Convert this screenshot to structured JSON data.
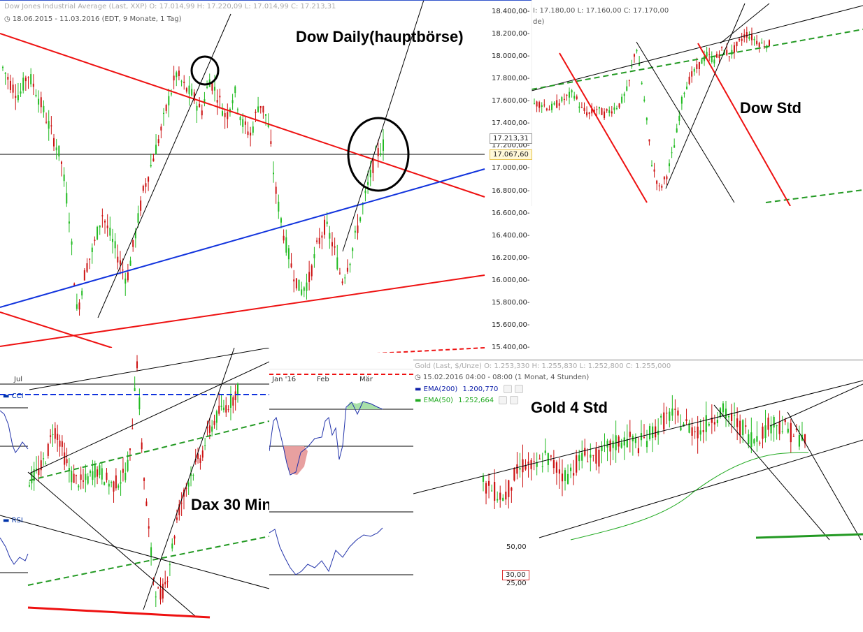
{
  "dow_daily": {
    "header": "Dow Jones Industrial Average (Last, XXP)  O: 17.014,99  H: 17.220,09  L: 17.014,99  C: 17.213,31",
    "period": "18.06.2015 - 11.03.2016 (EDT, 9 Monate, 1 Tag)",
    "title": "Dow Daily(hauptbörse)"
  },
  "dow_std": {
    "header": "I: 17.180,00  L: 17.160,00  C: 17.170,00",
    "header_suffix": "de)",
    "title": "Dow Std",
    "price_tag": "17.213,31",
    "current_tag": "17.067,60"
  },
  "dax": {
    "title": "Dax 30 Min",
    "x_label": "Jul",
    "cci_label": "CCI",
    "rsi_label": "RSI"
  },
  "middle": {
    "x_labels": [
      "Jan '16",
      "Feb",
      "Mär"
    ]
  },
  "gold": {
    "header": "Gold (Last, $/Unze)  O: 1.253,330  H: 1.255,830  L: 1.252,800  C: 1.255,000",
    "period": "15.02.2016 04:00 - 08:00 (1 Monat, 4 Stunden)",
    "ema200_label": "EMA(200)",
    "ema200_value": "1.200,770",
    "ema50_label": "EMA(50)",
    "ema50_value": "1.252,664",
    "title": "Gold 4 Std",
    "rsi_axis": [
      "50,00",
      "30,00",
      "25,00"
    ]
  },
  "colors": {
    "up": "#22bb22",
    "down": "#cc1111",
    "trend_red": "#ee1111",
    "trend_blue": "#1133dd",
    "trend_green": "#229922",
    "ema200": "#1122aa",
    "ema50": "#22aa22"
  },
  "chart_data": [
    {
      "type": "candlestick",
      "name": "Dow Daily",
      "yaxis": [
        "18.400,00",
        "18.200,00",
        "18.000,00",
        "17.800,00",
        "17.600,00",
        "17.400,00",
        "17.200,00",
        "17.000,00",
        "16.800,00",
        "16.600,00",
        "16.400,00",
        "16.200,00",
        "16.000,00",
        "15.800,00",
        "15.600,00",
        "15.400,00"
      ],
      "ylim": [
        15400,
        18400
      ],
      "close_path": [
        17900,
        17750,
        17650,
        17850,
        17700,
        17500,
        17300,
        17100,
        16600,
        15700,
        16100,
        16300,
        16600,
        16400,
        16200,
        16000,
        16400,
        16800,
        17050,
        17300,
        17600,
        17850,
        17720,
        17650,
        17500,
        17800,
        17650,
        17450,
        17700,
        17400,
        17300,
        17600,
        17450,
        16800,
        16400,
        16100,
        15900,
        16000,
        16300,
        16500,
        16300,
        16000,
        16200,
        16500,
        16800,
        17100,
        17213
      ]
    },
    {
      "type": "candlestick",
      "name": "Dow Std",
      "ylim": [
        16600,
        18400
      ],
      "close_path": [
        17550,
        17550,
        17500,
        17550,
        17600,
        17650,
        17500,
        17450,
        17500,
        17450,
        17500,
        17550,
        17700,
        18100,
        17600,
        17000,
        16750,
        16900,
        17200,
        17650,
        17800,
        17900,
        18000,
        17950,
        18050,
        18000,
        18100,
        18200,
        18150,
        18100,
        18100
      ]
    },
    {
      "type": "candlestick",
      "name": "Dax 30 Min",
      "close_path": [
        50,
        52,
        55,
        60,
        70,
        66,
        58,
        52,
        50,
        49,
        51,
        54,
        53,
        50,
        48,
        50,
        52,
        60,
        98,
        58,
        32,
        10,
        6,
        12,
        25,
        38,
        45,
        52,
        56,
        60,
        68,
        72,
        76,
        78,
        80,
        85
      ]
    },
    {
      "type": "candlestick",
      "name": "Gold 4 Std",
      "close_path": [
        40,
        35,
        30,
        45,
        55,
        50,
        60,
        52,
        45,
        55,
        62,
        58,
        65,
        70,
        72,
        68,
        75,
        82,
        90,
        85,
        80,
        78,
        88,
        92,
        86,
        80,
        72,
        78,
        85,
        80,
        75,
        72
      ]
    }
  ]
}
